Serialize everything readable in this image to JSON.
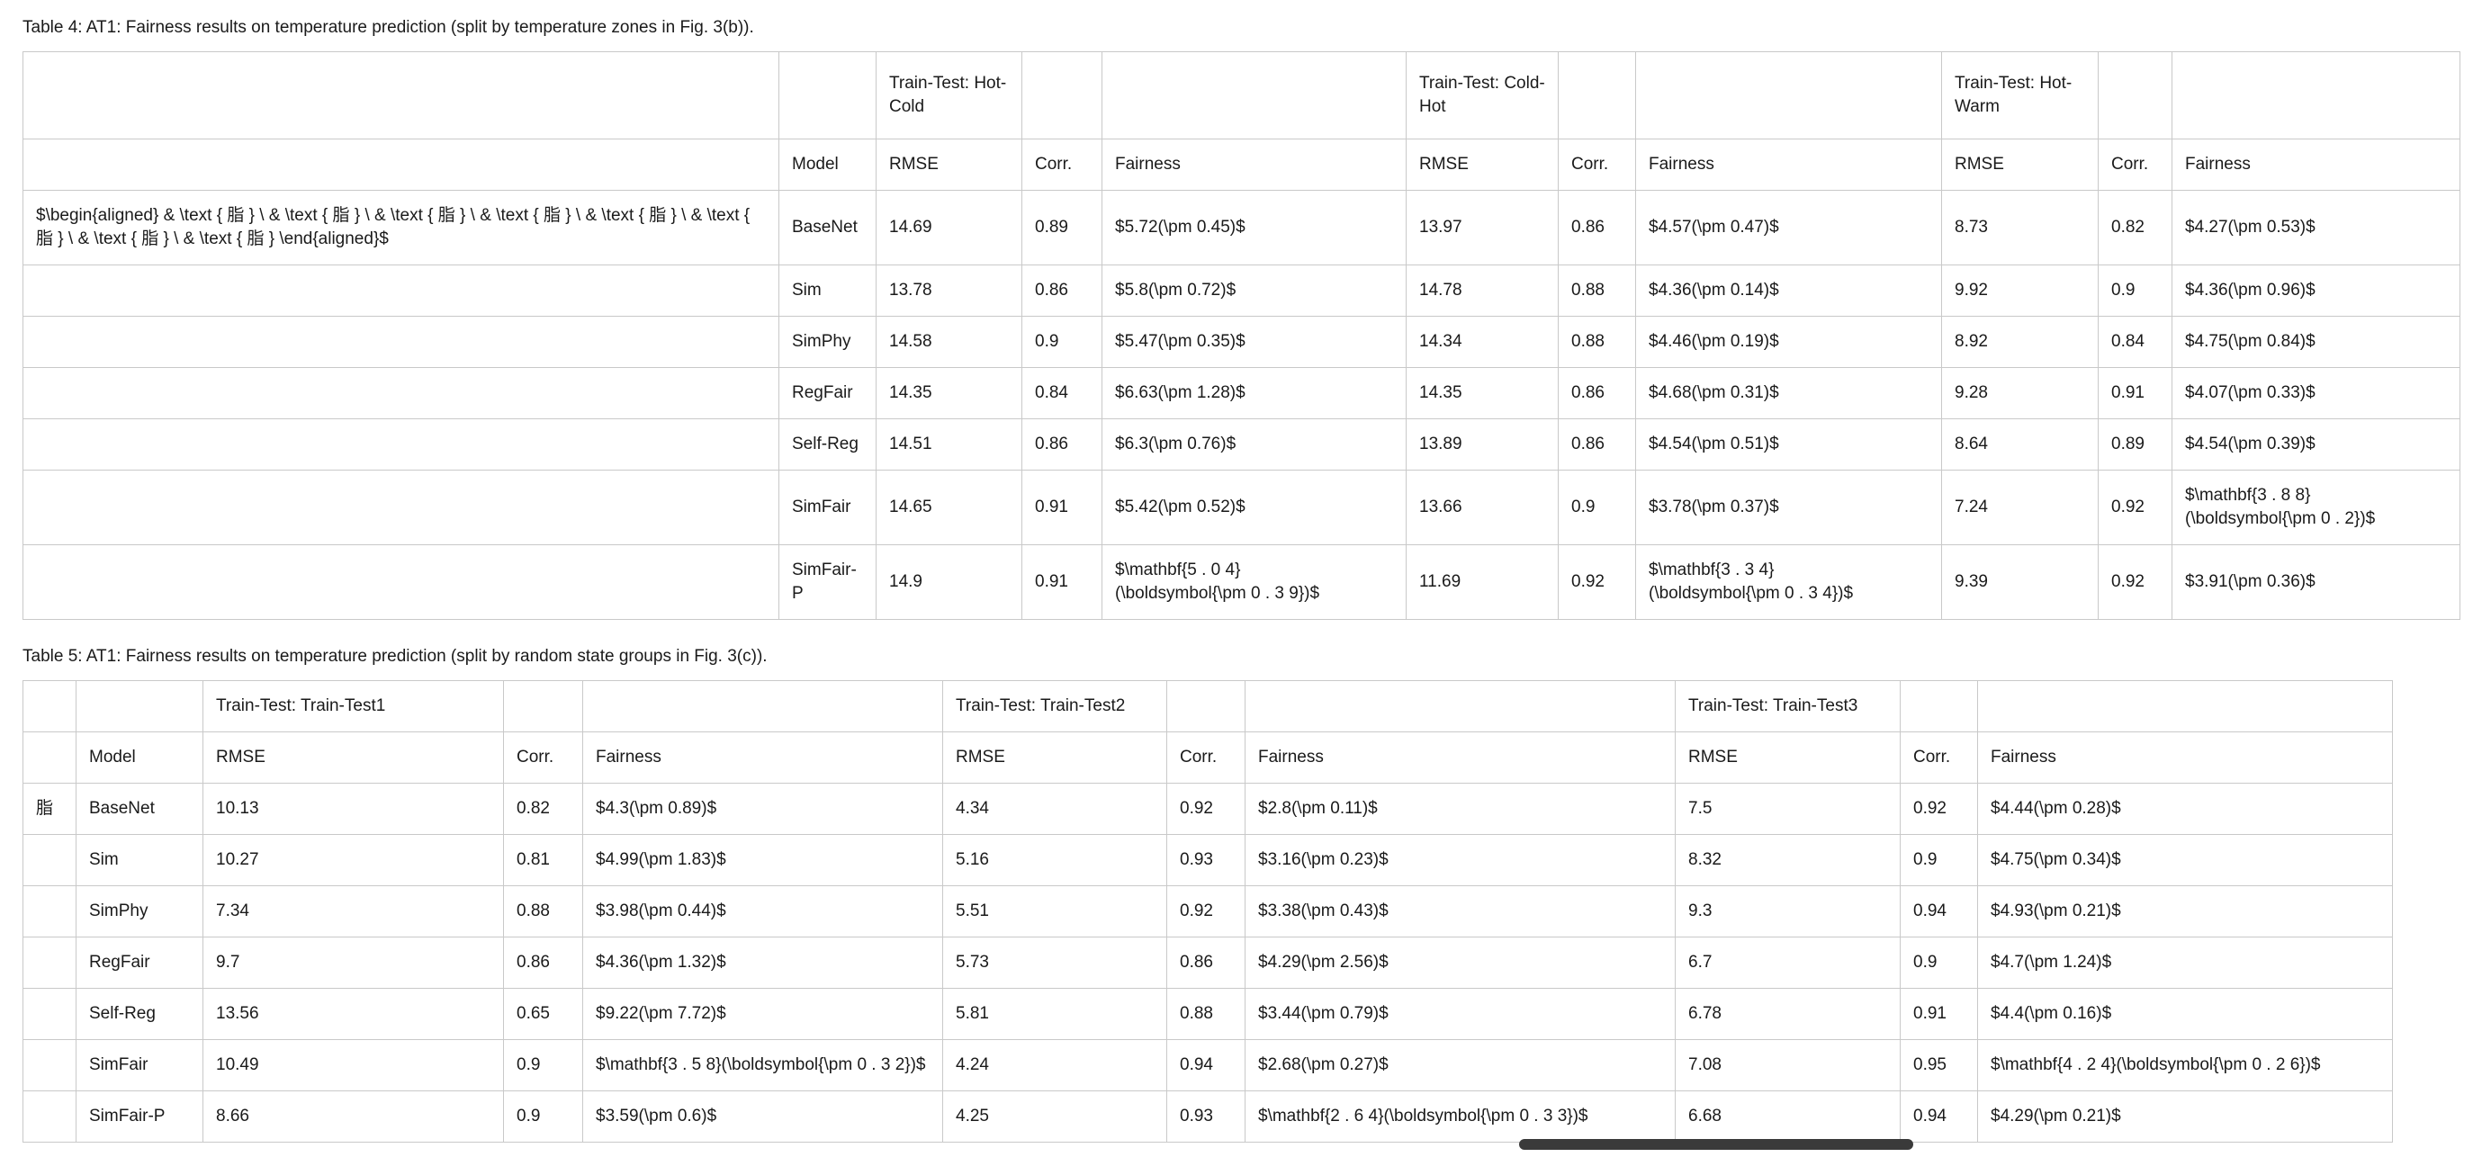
{
  "colors": {
    "page-bg": "#ffffff",
    "text": "#1a1a1a",
    "cell-border": "#c9c9c9",
    "t4-outer": "#8f8f8f",
    "t5-outer": "#b5b5b5",
    "thumb": "#3a3a3a"
  },
  "table4": {
    "caption": "Table 4: AT1: Fairness results on temperature prediction (split by temperature zones in Fig. 3(b)).",
    "group_header": [
      "",
      "",
      "Train-Test: Hot-Cold",
      "",
      "",
      "Train-Test: Cold-Hot",
      "",
      "",
      "Train-Test: Hot-Warm",
      "",
      ""
    ],
    "header": [
      "",
      "Model",
      "RMSE",
      "Corr.",
      "Fairness",
      "RMSE",
      "Corr.",
      "Fairness",
      "RMSE",
      "Corr.",
      "Fairness"
    ],
    "rows": [
      [
        "$\\begin{aligned} & \\text { 脂 } \\ & \\text { 脂 } \\ & \\text { 脂 } \\ & \\text { 脂 } \\ & \\text { 脂 } \\ & \\text { 脂 } \\ & \\text { 脂 } \\ & \\text { 脂 } \\end{aligned}$",
        "BaseNet",
        "14.69",
        "0.89",
        "$5.72(\\pm 0.45)$",
        "13.97",
        "0.86",
        "$4.57(\\pm 0.47)$",
        "8.73",
        "0.82",
        "$4.27(\\pm 0.53)$"
      ],
      [
        "",
        "Sim",
        "13.78",
        "0.86",
        "$5.8(\\pm 0.72)$",
        "14.78",
        "0.88",
        "$4.36(\\pm 0.14)$",
        "9.92",
        "0.9",
        "$4.36(\\pm 0.96)$"
      ],
      [
        "",
        "SimPhy",
        "14.58",
        "0.9",
        "$5.47(\\pm 0.35)$",
        "14.34",
        "0.88",
        "$4.46(\\pm 0.19)$",
        "8.92",
        "0.84",
        "$4.75(\\pm 0.84)$"
      ],
      [
        "",
        "RegFair",
        "14.35",
        "0.84",
        "$6.63(\\pm 1.28)$",
        "14.35",
        "0.86",
        "$4.68(\\pm 0.31)$",
        "9.28",
        "0.91",
        "$4.07(\\pm 0.33)$"
      ],
      [
        "",
        "Self-Reg",
        "14.51",
        "0.86",
        "$6.3(\\pm 0.76)$",
        "13.89",
        "0.86",
        "$4.54(\\pm 0.51)$",
        "8.64",
        "0.89",
        "$4.54(\\pm 0.39)$"
      ],
      [
        "",
        "SimFair",
        "14.65",
        "0.91",
        "$5.42(\\pm 0.52)$",
        "13.66",
        "0.9",
        "$3.78(\\pm 0.37)$",
        "7.24",
        "0.92",
        "$\\mathbf{3 . 8 8}\n(\\boldsymbol{\\pm 0 . 2})$"
      ],
      [
        "",
        "SimFair-P",
        "14.9",
        "0.91",
        "$\\mathbf{5 . 0 4}\n(\\boldsymbol{\\pm 0 . 3 9})$",
        "11.69",
        "0.92",
        "$\\mathbf{3 . 3 4}\n(\\boldsymbol{\\pm 0 . 3 4})$",
        "9.39",
        "0.92",
        "$3.91(\\pm 0.36)$"
      ]
    ]
  },
  "table5": {
    "caption": "Table 5: AT1: Fairness results on temperature prediction (split by random state groups in Fig. 3(c)).",
    "group_header": [
      "",
      "",
      "Train-Test: Train-Test1",
      "",
      "",
      "Train-Test: Train-Test2",
      "",
      "",
      "Train-Test: Train-Test3",
      "",
      ""
    ],
    "header": [
      "",
      "Model",
      "RMSE",
      "Corr.",
      "Fairness",
      "RMSE",
      "Corr.",
      "Fairness",
      "RMSE",
      "Corr.",
      "Fairness"
    ],
    "rows": [
      [
        "脂",
        "BaseNet",
        "10.13",
        "0.82",
        "$4.3(\\pm 0.89)$",
        "4.34",
        "0.92",
        "$2.8(\\pm 0.11)$",
        "7.5",
        "0.92",
        "$4.44(\\pm 0.28)$"
      ],
      [
        "",
        "Sim",
        "10.27",
        "0.81",
        "$4.99(\\pm 1.83)$",
        "5.16",
        "0.93",
        "$3.16(\\pm 0.23)$",
        "8.32",
        "0.9",
        "$4.75(\\pm 0.34)$"
      ],
      [
        "",
        "SimPhy",
        "7.34",
        "0.88",
        "$3.98(\\pm 0.44)$",
        "5.51",
        "0.92",
        "$3.38(\\pm 0.43)$",
        "9.3",
        "0.94",
        "$4.93(\\pm 0.21)$"
      ],
      [
        "",
        "RegFair",
        "9.7",
        "0.86",
        "$4.36(\\pm 1.32)$",
        "5.73",
        "0.86",
        "$4.29(\\pm 2.56)$",
        "6.7",
        "0.9",
        "$4.7(\\pm 1.24)$"
      ],
      [
        "",
        "Self-Reg",
        "13.56",
        "0.65",
        "$9.22(\\pm 7.72)$",
        "5.81",
        "0.88",
        "$3.44(\\pm 0.79)$",
        "6.78",
        "0.91",
        "$4.4(\\pm 0.16)$"
      ],
      [
        "",
        "SimFair",
        "10.49",
        "0.9",
        "$\\mathbf{3 . 5 8}(\\boldsymbol{\\pm 0 . 3 2})$",
        "4.24",
        "0.94",
        "$2.68(\\pm 0.27)$",
        "7.08",
        "0.95",
        "$\\mathbf{4 . 2 4}(\\boldsymbol{\\pm 0 . 2 6})$"
      ],
      [
        "",
        "SimFair-P",
        "8.66",
        "0.9",
        "$3.59(\\pm 0.6)$",
        "4.25",
        "0.93",
        "$\\mathbf{2 . 6 4}(\\boldsymbol{\\pm 0 . 3 3})$",
        "6.68",
        "0.94",
        "$4.29(\\pm 0.21)$"
      ]
    ]
  }
}
